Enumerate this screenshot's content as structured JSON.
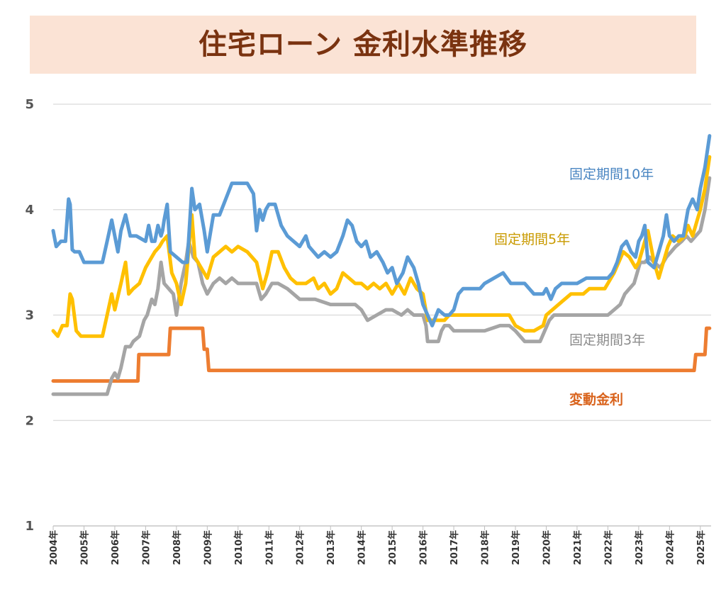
{
  "title": "住宅ローン 金利水準推移",
  "chart_data": {
    "type": "line",
    "title": "住宅ローン 金利水準推移",
    "xlabel": "",
    "ylabel": "",
    "xlim": [
      2004.0,
      2025.35
    ],
    "ylim": [
      1,
      5
    ],
    "y_ticks": [
      "1",
      "2",
      "3",
      "4",
      "5"
    ],
    "x_ticks": [
      "2004年",
      "2005年",
      "2006年",
      "2007年",
      "2008年",
      "2009年",
      "2010年",
      "2011年",
      "2012年",
      "2013年",
      "2014年",
      "2015年",
      "2016年",
      "2017年",
      "2018年",
      "2019年",
      "2020年",
      "2021年",
      "2022年",
      "2023年",
      "2024年",
      "2025年"
    ],
    "grid": "horizontal",
    "legend": "inline labels at line ends",
    "series": [
      {
        "name": "固定期間10年",
        "color": "#5b9bd5",
        "x": [
          2004.0,
          2004.1,
          2004.25,
          2004.4,
          2004.5,
          2004.55,
          2004.62,
          2004.7,
          2004.75,
          2004.85,
          2005.0,
          2005.15,
          2005.3,
          2005.6,
          2005.75,
          2005.9,
          2006.0,
          2006.1,
          2006.2,
          2006.35,
          2006.5,
          2006.7,
          2007.0,
          2007.1,
          2007.2,
          2007.3,
          2007.4,
          2007.5,
          2007.55,
          2007.6,
          2007.7,
          2007.8,
          2008.0,
          2008.2,
          2008.35,
          2008.5,
          2008.6,
          2008.75,
          2008.9,
          2009.0,
          2009.2,
          2009.4,
          2009.6,
          2009.8,
          2010.0,
          2010.3,
          2010.5,
          2010.6,
          2010.7,
          2010.8,
          2010.9,
          2011.0,
          2011.2,
          2011.4,
          2011.6,
          2011.8,
          2012.0,
          2012.2,
          2012.3,
          2012.45,
          2012.6,
          2012.8,
          2013.0,
          2013.2,
          2013.4,
          2013.55,
          2013.7,
          2013.85,
          2014.0,
          2014.15,
          2014.3,
          2014.5,
          2014.7,
          2014.85,
          2015.0,
          2015.15,
          2015.35,
          2015.5,
          2015.7,
          2015.85,
          2016.0,
          2016.15,
          2016.3,
          2016.5,
          2016.7,
          2016.85,
          2017.0,
          2017.15,
          2017.3,
          2017.5,
          2017.7,
          2017.85,
          2018.0,
          2018.3,
          2018.6,
          2018.85,
          2019.0,
          2019.3,
          2019.6,
          2019.9,
          2020.0,
          2020.15,
          2020.3,
          2020.5,
          2020.7,
          2021.0,
          2021.3,
          2021.6,
          2021.9,
          2022.0,
          2022.15,
          2022.3,
          2022.45,
          2022.6,
          2022.75,
          2022.9,
          2023.0,
          2023.1,
          2023.2,
          2023.3,
          2023.5,
          2023.65,
          2023.8,
          2023.9,
          2024.0,
          2024.15,
          2024.3,
          2024.45,
          2024.6,
          2024.75,
          2024.9,
          2025.0,
          2025.15,
          2025.3
        ],
        "values": [
          3.8,
          3.65,
          3.7,
          3.7,
          4.1,
          4.05,
          3.62,
          3.6,
          3.6,
          3.6,
          3.5,
          3.5,
          3.5,
          3.5,
          3.7,
          3.9,
          3.75,
          3.6,
          3.8,
          3.95,
          3.75,
          3.75,
          3.7,
          3.85,
          3.7,
          3.7,
          3.85,
          3.75,
          3.8,
          3.9,
          4.05,
          3.6,
          3.55,
          3.5,
          3.5,
          4.2,
          4.0,
          4.05,
          3.8,
          3.6,
          3.95,
          3.95,
          4.1,
          4.25,
          4.25,
          4.25,
          4.15,
          3.8,
          4.0,
          3.9,
          4.0,
          4.05,
          4.05,
          3.85,
          3.75,
          3.7,
          3.65,
          3.75,
          3.65,
          3.6,
          3.55,
          3.6,
          3.55,
          3.6,
          3.75,
          3.9,
          3.85,
          3.7,
          3.65,
          3.7,
          3.55,
          3.6,
          3.5,
          3.4,
          3.45,
          3.3,
          3.4,
          3.55,
          3.45,
          3.3,
          3.1,
          3.0,
          2.9,
          3.05,
          3.0,
          3.0,
          3.05,
          3.2,
          3.25,
          3.25,
          3.25,
          3.25,
          3.3,
          3.35,
          3.4,
          3.3,
          3.3,
          3.3,
          3.2,
          3.2,
          3.25,
          3.15,
          3.25,
          3.3,
          3.3,
          3.3,
          3.35,
          3.35,
          3.35,
          3.35,
          3.4,
          3.5,
          3.65,
          3.7,
          3.6,
          3.55,
          3.7,
          3.75,
          3.85,
          3.5,
          3.45,
          3.6,
          3.75,
          3.95,
          3.75,
          3.7,
          3.75,
          3.75,
          4.0,
          4.1,
          4.0,
          4.2,
          4.4,
          4.7
        ]
      },
      {
        "name": "固定期間5年",
        "color": "#ffc000",
        "x": [
          2004.0,
          2004.15,
          2004.3,
          2004.45,
          2004.55,
          2004.62,
          2004.75,
          2004.9,
          2005.3,
          2005.6,
          2005.75,
          2005.9,
          2006.0,
          2006.2,
          2006.35,
          2006.45,
          2006.6,
          2006.8,
          2007.0,
          2007.1,
          2007.3,
          2007.45,
          2007.55,
          2007.7,
          2007.85,
          2008.0,
          2008.15,
          2008.3,
          2008.5,
          2008.6,
          2008.8,
          2009.0,
          2009.2,
          2009.4,
          2009.6,
          2009.8,
          2010.0,
          2010.3,
          2010.6,
          2010.8,
          2010.95,
          2011.1,
          2011.3,
          2011.5,
          2011.7,
          2011.9,
          2012.2,
          2012.45,
          2012.6,
          2012.8,
          2013.0,
          2013.2,
          2013.4,
          2013.6,
          2013.8,
          2014.0,
          2014.2,
          2014.4,
          2014.6,
          2014.8,
          2015.0,
          2015.2,
          2015.4,
          2015.6,
          2015.8,
          2016.0,
          2016.15,
          2016.3,
          2016.5,
          2016.7,
          2016.85,
          2017.0,
          2017.15,
          2017.3,
          2017.6,
          2018.0,
          2018.4,
          2018.8,
          2019.0,
          2019.3,
          2019.6,
          2019.9,
          2020.0,
          2020.2,
          2020.4,
          2020.6,
          2020.8,
          2021.0,
          2021.2,
          2021.4,
          2021.6,
          2021.9,
          2022.0,
          2022.2,
          2022.35,
          2022.5,
          2022.7,
          2022.9,
          2023.0,
          2023.1,
          2023.3,
          2023.5,
          2023.65,
          2023.8,
          2023.95,
          2024.1,
          2024.3,
          2024.5,
          2024.6,
          2024.75,
          2024.9,
          2025.0,
          2025.15,
          2025.3
        ],
        "values": [
          2.85,
          2.8,
          2.9,
          2.9,
          3.2,
          3.15,
          2.85,
          2.8,
          2.8,
          2.8,
          3.0,
          3.2,
          3.05,
          3.3,
          3.5,
          3.2,
          3.25,
          3.3,
          3.45,
          3.5,
          3.6,
          3.65,
          3.7,
          3.75,
          3.4,
          3.3,
          3.1,
          3.3,
          3.95,
          3.55,
          3.45,
          3.35,
          3.55,
          3.6,
          3.65,
          3.6,
          3.65,
          3.6,
          3.5,
          3.25,
          3.4,
          3.6,
          3.6,
          3.45,
          3.35,
          3.3,
          3.3,
          3.35,
          3.25,
          3.3,
          3.2,
          3.25,
          3.4,
          3.35,
          3.3,
          3.3,
          3.25,
          3.3,
          3.25,
          3.3,
          3.2,
          3.3,
          3.2,
          3.35,
          3.25,
          3.2,
          2.95,
          2.95,
          2.95,
          2.95,
          3.0,
          3.0,
          3.0,
          3.0,
          3.0,
          3.0,
          3.0,
          3.0,
          2.9,
          2.85,
          2.85,
          2.9,
          3.0,
          3.05,
          3.1,
          3.15,
          3.2,
          3.2,
          3.2,
          3.25,
          3.25,
          3.25,
          3.3,
          3.4,
          3.5,
          3.6,
          3.55,
          3.45,
          3.5,
          3.6,
          3.8,
          3.5,
          3.35,
          3.5,
          3.65,
          3.75,
          3.7,
          3.75,
          3.85,
          3.75,
          3.9,
          4.0,
          4.2,
          4.5
        ]
      },
      {
        "name": "固定期間3年",
        "color": "#a5a5a5",
        "x": [
          2004.0,
          2004.5,
          2005.0,
          2005.5,
          2005.75,
          2005.9,
          2006.0,
          2006.1,
          2006.2,
          2006.35,
          2006.5,
          2006.6,
          2006.8,
          2006.95,
          2007.05,
          2007.2,
          2007.3,
          2007.4,
          2007.5,
          2007.6,
          2007.75,
          2007.9,
          2008.0,
          2008.15,
          2008.3,
          2008.4,
          2008.55,
          2008.7,
          2008.85,
          2009.0,
          2009.2,
          2009.4,
          2009.6,
          2009.8,
          2010.0,
          2010.4,
          2010.6,
          2010.75,
          2010.9,
          2011.1,
          2011.3,
          2011.6,
          2012.0,
          2012.5,
          2013.0,
          2013.5,
          2013.8,
          2014.0,
          2014.2,
          2014.5,
          2014.8,
          2015.0,
          2015.3,
          2015.5,
          2015.7,
          2016.0,
          2016.1,
          2016.15,
          2016.5,
          2016.6,
          2016.7,
          2016.85,
          2017.0,
          2017.1,
          2017.2,
          2017.5,
          2018.0,
          2018.5,
          2018.8,
          2019.0,
          2019.3,
          2019.6,
          2019.8,
          2019.95,
          2020.1,
          2020.25,
          2020.5,
          2020.8,
          2021.0,
          2021.5,
          2022.0,
          2022.2,
          2022.4,
          2022.55,
          2022.7,
          2022.85,
          2022.95,
          2023.05,
          2023.2,
          2023.35,
          2023.5,
          2023.7,
          2023.9,
          2024.05,
          2024.2,
          2024.4,
          2024.55,
          2024.7,
          2024.85,
          2025.0,
          2025.15,
          2025.3
        ],
        "values": [
          2.25,
          2.25,
          2.25,
          2.25,
          2.25,
          2.4,
          2.45,
          2.4,
          2.5,
          2.7,
          2.7,
          2.75,
          2.8,
          2.95,
          3.0,
          3.15,
          3.1,
          3.25,
          3.5,
          3.3,
          3.25,
          3.2,
          3.0,
          3.3,
          3.5,
          3.7,
          3.55,
          3.5,
          3.3,
          3.2,
          3.3,
          3.35,
          3.3,
          3.35,
          3.3,
          3.3,
          3.3,
          3.15,
          3.2,
          3.3,
          3.3,
          3.25,
          3.15,
          3.15,
          3.1,
          3.1,
          3.1,
          3.05,
          2.95,
          3.0,
          3.05,
          3.05,
          3.0,
          3.05,
          3.0,
          3.0,
          2.9,
          2.75,
          2.75,
          2.85,
          2.9,
          2.9,
          2.85,
          2.85,
          2.85,
          2.85,
          2.85,
          2.9,
          2.9,
          2.85,
          2.75,
          2.75,
          2.75,
          2.85,
          2.95,
          3.0,
          3.0,
          3.0,
          3.0,
          3.0,
          3.0,
          3.05,
          3.1,
          3.2,
          3.25,
          3.3,
          3.4,
          3.5,
          3.5,
          3.55,
          3.5,
          3.45,
          3.55,
          3.6,
          3.65,
          3.7,
          3.75,
          3.7,
          3.75,
          3.8,
          4.0,
          4.3
        ]
      },
      {
        "name": "変動金利",
        "color": "#ed7d31",
        "x": [
          2004.0,
          2006.75,
          2006.78,
          2007.75,
          2007.8,
          2008.85,
          2008.9,
          2009.0,
          2009.05,
          2024.8,
          2024.85,
          2025.15,
          2025.2,
          2025.3
        ],
        "values": [
          2.375,
          2.375,
          2.625,
          2.625,
          2.875,
          2.875,
          2.675,
          2.675,
          2.475,
          2.475,
          2.625,
          2.625,
          2.875,
          2.875
        ]
      }
    ]
  }
}
